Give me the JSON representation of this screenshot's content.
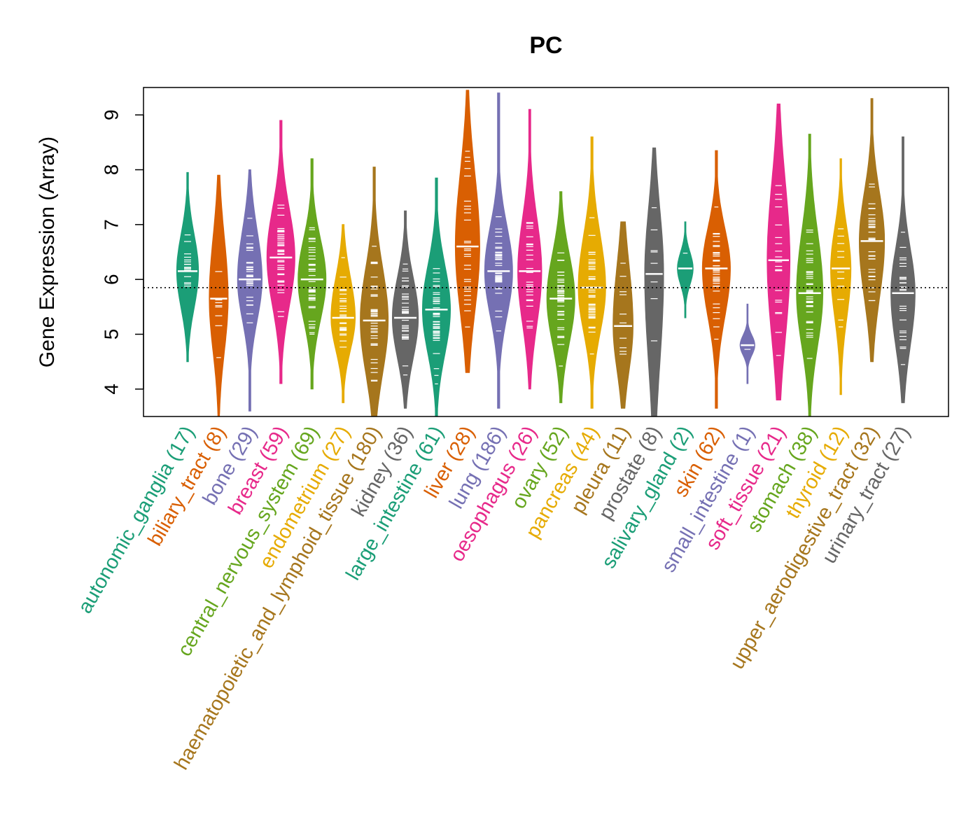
{
  "chart_data": {
    "type": "violin",
    "title": "PC",
    "xlabel": "",
    "ylabel": "Gene Expression (Array)",
    "ylim": [
      3.5,
      9.5
    ],
    "yticks": [
      4,
      5,
      6,
      7,
      8,
      9
    ],
    "reference_line": 5.85,
    "categories": [
      {
        "name": "autonomic_ganglia",
        "n": 17,
        "label": "autonomic_ganglia (17)",
        "color": "#1b9e77",
        "min": 4.5,
        "max": 7.95,
        "median": 6.15,
        "q1": 5.7,
        "q3": 6.6
      },
      {
        "name": "biliary_tract",
        "n": 8,
        "label": "biliary_tract (8)",
        "color": "#d95f02",
        "min": 3.5,
        "max": 7.9,
        "median": 5.65,
        "q1": 5.0,
        "q3": 6.4
      },
      {
        "name": "bone",
        "n": 29,
        "label": "bone (29)",
        "color": "#7570b3",
        "min": 3.6,
        "max": 8.0,
        "median": 6.0,
        "q1": 5.5,
        "q3": 6.6
      },
      {
        "name": "breast",
        "n": 59,
        "label": "breast (59)",
        "color": "#e7298a",
        "min": 4.1,
        "max": 8.9,
        "median": 6.4,
        "q1": 5.8,
        "q3": 7.0
      },
      {
        "name": "central_nervous_system",
        "n": 69,
        "label": "central_nervous_system (69)",
        "color": "#66a61e",
        "min": 4.0,
        "max": 8.2,
        "median": 6.0,
        "q1": 5.5,
        "q3": 6.5
      },
      {
        "name": "endometrium",
        "n": 27,
        "label": "endometrium (27)",
        "color": "#e6ab02",
        "min": 3.75,
        "max": 7.0,
        "median": 5.3,
        "q1": 4.9,
        "q3": 5.8
      },
      {
        "name": "haematopoietic_and_lymphoid_tissue",
        "n": 180,
        "label": "haematopoietic_and_lymphoid_tissue (180)",
        "color": "#a6761d",
        "min": 3.5,
        "max": 8.05,
        "median": 5.25,
        "q1": 4.6,
        "q3": 5.9
      },
      {
        "name": "kidney",
        "n": 36,
        "label": "kidney (36)",
        "color": "#666666",
        "min": 3.65,
        "max": 7.25,
        "median": 5.3,
        "q1": 4.8,
        "q3": 5.8
      },
      {
        "name": "large_intestine",
        "n": 61,
        "label": "large_intestine (61)",
        "color": "#1b9e77",
        "min": 3.5,
        "max": 7.85,
        "median": 5.45,
        "q1": 4.9,
        "q3": 6.0
      },
      {
        "name": "liver",
        "n": 28,
        "label": "liver (28)",
        "color": "#d95f02",
        "min": 4.3,
        "max": 9.45,
        "median": 6.6,
        "q1": 5.8,
        "q3": 7.5
      },
      {
        "name": "lung",
        "n": 186,
        "label": "lung (186)",
        "color": "#7570b3",
        "min": 3.65,
        "max": 9.4,
        "median": 6.15,
        "q1": 5.6,
        "q3": 6.7
      },
      {
        "name": "oesophagus",
        "n": 26,
        "label": "oesophagus (26)",
        "color": "#e7298a",
        "min": 4.0,
        "max": 9.1,
        "median": 6.15,
        "q1": 5.5,
        "q3": 6.8
      },
      {
        "name": "ovary",
        "n": 52,
        "label": "ovary (52)",
        "color": "#66a61e",
        "min": 3.75,
        "max": 7.6,
        "median": 5.65,
        "q1": 5.1,
        "q3": 6.2
      },
      {
        "name": "pancreas",
        "n": 44,
        "label": "pancreas (44)",
        "color": "#e6ab02",
        "min": 3.65,
        "max": 8.6,
        "median": 5.85,
        "q1": 5.3,
        "q3": 6.5
      },
      {
        "name": "pleura",
        "n": 11,
        "label": "pleura (11)",
        "color": "#a6761d",
        "min": 3.65,
        "max": 7.05,
        "median": 5.15,
        "q1": 4.6,
        "q3": 5.9
      },
      {
        "name": "prostate",
        "n": 8,
        "label": "prostate (8)",
        "color": "#666666",
        "min": 3.5,
        "max": 8.4,
        "median": 6.1,
        "q1": 5.0,
        "q3": 6.9
      },
      {
        "name": "salivary_gland",
        "n": 2,
        "label": "salivary_gland (2)",
        "color": "#1b9e77",
        "min": 5.3,
        "max": 7.05,
        "median": 6.2,
        "q1": 6.0,
        "q3": 6.4
      },
      {
        "name": "skin",
        "n": 62,
        "label": "skin (62)",
        "color": "#d95f02",
        "min": 3.65,
        "max": 8.35,
        "median": 6.2,
        "q1": 5.6,
        "q3": 6.7
      },
      {
        "name": "small_intestine",
        "n": 1,
        "label": "small_intestine (1)",
        "color": "#7570b3",
        "min": 4.1,
        "max": 5.55,
        "median": 4.8,
        "q1": 4.8,
        "q3": 4.8
      },
      {
        "name": "soft_tissue",
        "n": 21,
        "label": "soft_tissue (21)",
        "color": "#e7298a",
        "min": 3.8,
        "max": 9.2,
        "median": 6.35,
        "q1": 5.4,
        "q3": 7.3
      },
      {
        "name": "stomach",
        "n": 38,
        "label": "stomach (38)",
        "color": "#66a61e",
        "min": 3.5,
        "max": 8.65,
        "median": 5.75,
        "q1": 5.1,
        "q3": 6.5
      },
      {
        "name": "thyroid",
        "n": 12,
        "label": "thyroid (12)",
        "color": "#e6ab02",
        "min": 3.9,
        "max": 8.2,
        "median": 6.2,
        "q1": 5.6,
        "q3": 6.7
      },
      {
        "name": "upper_aerodigestive_tract",
        "n": 32,
        "label": "upper_aerodigestive_tract (32)",
        "color": "#a6761d",
        "min": 4.5,
        "max": 9.3,
        "median": 6.7,
        "q1": 6.0,
        "q3": 7.3
      },
      {
        "name": "urinary_tract",
        "n": 27,
        "label": "urinary_tract (27)",
        "color": "#666666",
        "min": 3.75,
        "max": 8.6,
        "median": 5.75,
        "q1": 5.1,
        "q3": 6.3
      }
    ]
  }
}
